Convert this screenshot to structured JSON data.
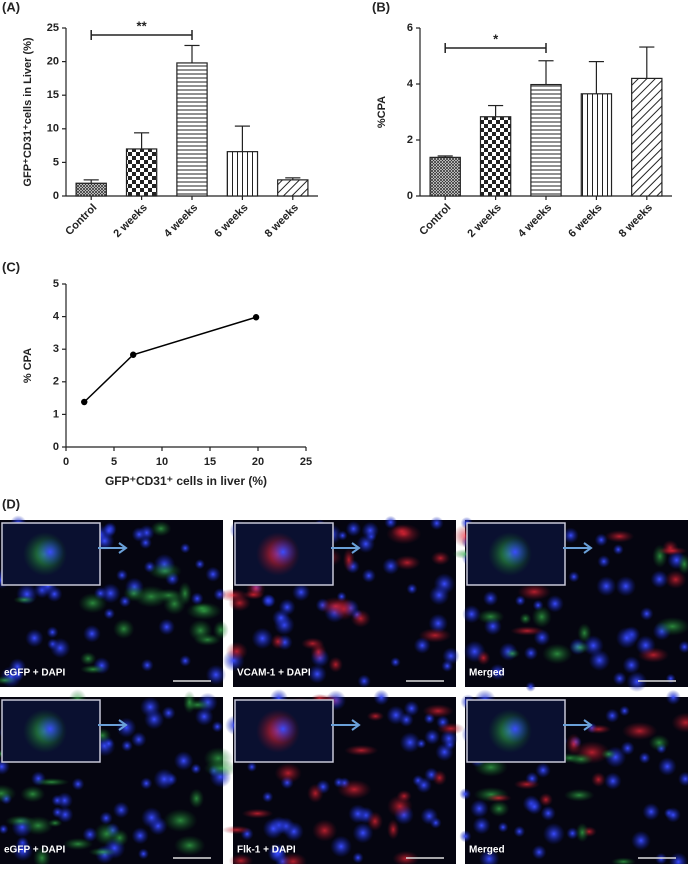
{
  "chart_data": [
    {
      "type": "bar",
      "panel_label": "(A)",
      "y_label": "GFP⁺CD31⁺cells in Liver (%)",
      "categories": [
        "Control",
        "2 weeks",
        "4 weeks",
        "6 weeks",
        "8 weeks"
      ],
      "values": [
        1.9,
        7.0,
        19.8,
        6.6,
        2.4
      ],
      "errors": [
        0.5,
        2.4,
        2.6,
        3.8,
        0.3
      ],
      "ylim": [
        0,
        25
      ],
      "yticks": [
        0,
        5,
        10,
        15,
        20,
        25
      ],
      "annotation": "**",
      "color": "#222222"
    },
    {
      "type": "bar",
      "panel_label": "(B)",
      "y_label": "%CPA",
      "categories": [
        "Control",
        "2 weeks",
        "4 weeks",
        "6 weeks",
        "8 weeks"
      ],
      "values": [
        1.38,
        2.83,
        3.98,
        3.65,
        4.2
      ],
      "errors": [
        0.05,
        0.4,
        0.85,
        1.15,
        1.12
      ],
      "ylim": [
        0,
        6
      ],
      "yticks": [
        0,
        2,
        4,
        6
      ],
      "annotation": "*",
      "color": "#222222"
    },
    {
      "type": "line",
      "panel_label": "(C)",
      "y_label": "% CPA",
      "x_label": "GFP⁺CD31⁺ cells in liver (%)",
      "x": [
        1.9,
        7.0,
        19.8
      ],
      "values": [
        1.38,
        2.83,
        3.98
      ],
      "xlim": [
        0,
        25
      ],
      "xticks": [
        0,
        5,
        10,
        15,
        20,
        25
      ],
      "ylim": [
        0,
        5
      ],
      "yticks": [
        0,
        1,
        2,
        3,
        4,
        5
      ],
      "color": "#000000"
    }
  ],
  "panel_d": {
    "label": "(D)",
    "images": [
      "eGFP + DAPI",
      "VCAM-1 + DAPI",
      "Merged",
      "eGFP + DAPI",
      "Flk-1 + DAPI",
      "Merged"
    ]
  }
}
